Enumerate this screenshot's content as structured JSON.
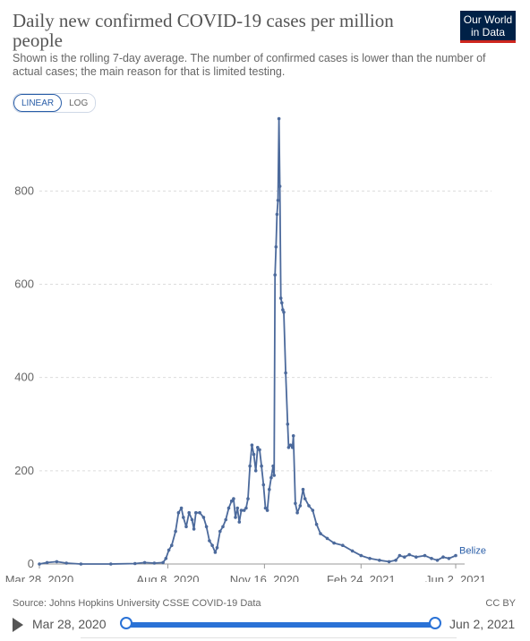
{
  "header": {
    "title": "Daily new confirmed COVID-19 cases per million people",
    "subtitle": "Shown is the rolling 7-day average. The number of confirmed cases is lower than the number of actual cases; the main reason for that is limited testing.",
    "logo_line1": "Our World",
    "logo_line2": "in Data",
    "logo_bg": "#002147",
    "logo_accent": "#ce261e"
  },
  "controls": {
    "linear_label": "LINEAR",
    "log_label": "LOG",
    "active_scale": "linear"
  },
  "footer": {
    "source": "Source: Johns Hopkins University CSSE COVID-19 Data",
    "license": "CC BY"
  },
  "timeline": {
    "start_label": "Mar 28, 2020",
    "end_label": "Jun 2, 2021",
    "accent": "#2a72d6"
  },
  "chart_data": {
    "type": "line",
    "title": "Daily new confirmed COVID-19 cases per million people",
    "x_range": [
      "2020-03-28",
      "2021-06-02"
    ],
    "ylim": [
      0,
      960
    ],
    "yticks": [
      0,
      200,
      400,
      600,
      800
    ],
    "xticks": [
      "2020-03-28",
      "2020-08-08",
      "2020-11-16",
      "2021-02-24",
      "2021-06-02"
    ],
    "xtick_labels": [
      "Mar 28, 2020",
      "Aug 8, 2020",
      "Nov 16, 2020",
      "Feb 24, 2021",
      "Jun 2, 2021"
    ],
    "grid": true,
    "legend_placement": "end-of-line",
    "line_color": "#4c6a9c",
    "series": [
      {
        "name": "Belize",
        "points": [
          [
            "2020-03-28",
            0
          ],
          [
            "2020-04-05",
            3
          ],
          [
            "2020-04-15",
            5
          ],
          [
            "2020-04-25",
            2
          ],
          [
            "2020-05-10",
            0
          ],
          [
            "2020-06-10",
            0
          ],
          [
            "2020-07-05",
            1
          ],
          [
            "2020-07-15",
            3
          ],
          [
            "2020-07-25",
            2
          ],
          [
            "2020-08-03",
            3
          ],
          [
            "2020-08-06",
            12
          ],
          [
            "2020-08-09",
            30
          ],
          [
            "2020-08-12",
            40
          ],
          [
            "2020-08-16",
            70
          ],
          [
            "2020-08-19",
            110
          ],
          [
            "2020-08-22",
            120
          ],
          [
            "2020-08-24",
            100
          ],
          [
            "2020-08-27",
            80
          ],
          [
            "2020-08-30",
            110
          ],
          [
            "2020-09-02",
            95
          ],
          [
            "2020-09-04",
            75
          ],
          [
            "2020-09-06",
            110
          ],
          [
            "2020-09-10",
            110
          ],
          [
            "2020-09-14",
            100
          ],
          [
            "2020-09-17",
            80
          ],
          [
            "2020-09-20",
            50
          ],
          [
            "2020-09-23",
            40
          ],
          [
            "2020-09-26",
            25
          ],
          [
            "2020-09-28",
            35
          ],
          [
            "2020-10-01",
            70
          ],
          [
            "2020-10-04",
            80
          ],
          [
            "2020-10-07",
            95
          ],
          [
            "2020-10-10",
            120
          ],
          [
            "2020-10-13",
            135
          ],
          [
            "2020-10-15",
            140
          ],
          [
            "2020-10-17",
            100
          ],
          [
            "2020-10-19",
            120
          ],
          [
            "2020-10-21",
            90
          ],
          [
            "2020-10-23",
            115
          ],
          [
            "2020-10-26",
            115
          ],
          [
            "2020-10-28",
            120
          ],
          [
            "2020-10-30",
            140
          ],
          [
            "2020-11-01",
            210
          ],
          [
            "2020-11-03",
            255
          ],
          [
            "2020-11-05",
            235
          ],
          [
            "2020-11-07",
            200
          ],
          [
            "2020-11-09",
            250
          ],
          [
            "2020-11-11",
            245
          ],
          [
            "2020-11-13",
            210
          ],
          [
            "2020-11-15",
            170
          ],
          [
            "2020-11-17",
            120
          ],
          [
            "2020-11-19",
            115
          ],
          [
            "2020-11-21",
            160
          ],
          [
            "2020-11-23",
            185
          ],
          [
            "2020-11-25",
            210
          ],
          [
            "2020-11-26",
            190
          ],
          [
            "2020-11-27",
            620
          ],
          [
            "2020-11-28",
            680
          ],
          [
            "2020-11-29",
            750
          ],
          [
            "2020-11-30",
            780
          ],
          [
            "2020-12-01",
            955
          ],
          [
            "2020-12-02",
            810
          ],
          [
            "2020-12-03",
            570
          ],
          [
            "2020-12-04",
            560
          ],
          [
            "2020-12-05",
            545
          ],
          [
            "2020-12-06",
            540
          ],
          [
            "2020-12-08",
            410
          ],
          [
            "2020-12-10",
            300
          ],
          [
            "2020-12-11",
            250
          ],
          [
            "2020-12-13",
            255
          ],
          [
            "2020-12-15",
            250
          ],
          [
            "2020-12-16",
            275
          ],
          [
            "2020-12-18",
            130
          ],
          [
            "2020-12-20",
            110
          ],
          [
            "2020-12-23",
            125
          ],
          [
            "2020-12-26",
            160
          ],
          [
            "2020-12-28",
            140
          ],
          [
            "2021-01-01",
            125
          ],
          [
            "2021-01-05",
            115
          ],
          [
            "2021-01-09",
            85
          ],
          [
            "2021-01-13",
            65
          ],
          [
            "2021-01-20",
            55
          ],
          [
            "2021-01-27",
            45
          ],
          [
            "2021-02-05",
            40
          ],
          [
            "2021-02-15",
            28
          ],
          [
            "2021-02-24",
            18
          ],
          [
            "2021-03-05",
            12
          ],
          [
            "2021-03-15",
            8
          ],
          [
            "2021-03-25",
            5
          ],
          [
            "2021-04-01",
            8
          ],
          [
            "2021-04-05",
            18
          ],
          [
            "2021-04-10",
            15
          ],
          [
            "2021-04-15",
            20
          ],
          [
            "2021-04-22",
            15
          ],
          [
            "2021-05-01",
            18
          ],
          [
            "2021-05-08",
            12
          ],
          [
            "2021-05-14",
            8
          ],
          [
            "2021-05-20",
            15
          ],
          [
            "2021-05-26",
            12
          ],
          [
            "2021-06-02",
            18
          ]
        ]
      }
    ]
  }
}
